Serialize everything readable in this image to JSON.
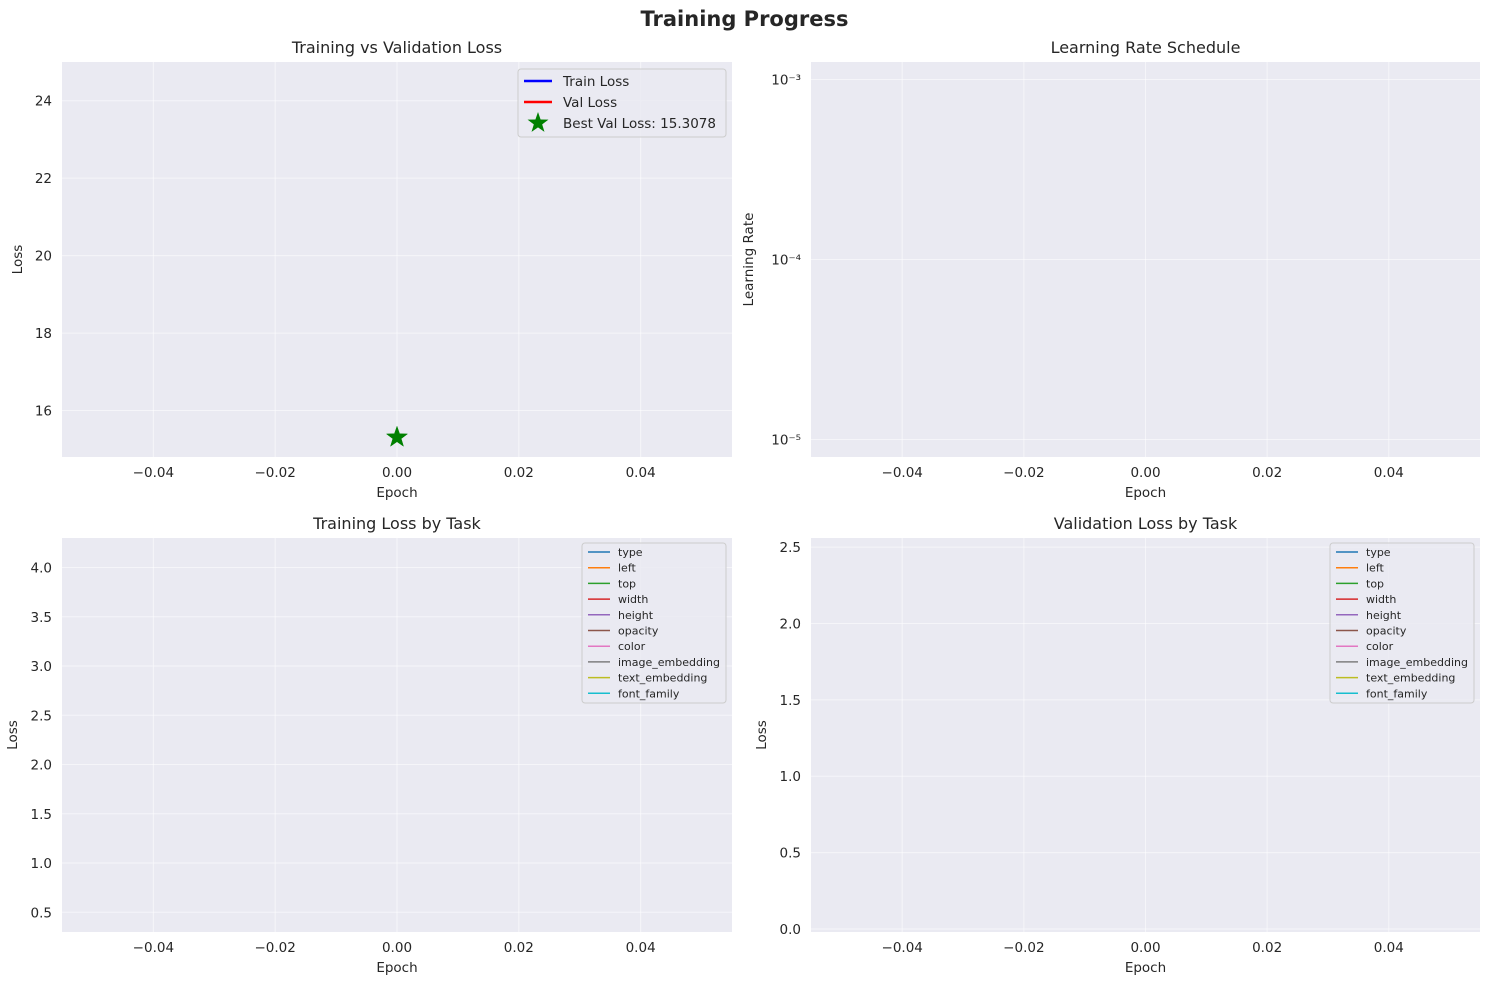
{
  "figure": {
    "suptitle": "Training Progress"
  },
  "chart_data": [
    {
      "type": "line",
      "title": "Training vs Validation Loss",
      "xlabel": "Epoch",
      "ylabel": "Loss",
      "xlim": [
        -0.055,
        0.055
      ],
      "ylim": [
        14.8,
        25.0
      ],
      "x_ticks": [
        -0.04,
        -0.02,
        0.0,
        0.02,
        0.04
      ],
      "x_tick_labels": [
        "−0.04",
        "−0.02",
        "0.00",
        "0.02",
        "0.04"
      ],
      "y_ticks": [
        16,
        18,
        20,
        22,
        24
      ],
      "y_tick_labels": [
        "16",
        "18",
        "20",
        "22",
        "24"
      ],
      "grid": true,
      "legend_position": "top-right",
      "series": [
        {
          "name": "Train Loss",
          "color": "#0000ff",
          "x": [],
          "y": []
        },
        {
          "name": "Val Loss",
          "color": "#ff0000",
          "x": [],
          "y": []
        }
      ],
      "markers": [
        {
          "name": "Best Val Loss: 15.3078",
          "color": "#008000",
          "marker": "star",
          "x": 0.0,
          "y": 15.3078
        }
      ]
    },
    {
      "type": "line",
      "title": "Learning Rate Schedule",
      "xlabel": "Epoch",
      "ylabel": "Learning Rate",
      "yscale": "log",
      "xlim": [
        -0.055,
        0.055
      ],
      "ylim": [
        8e-06,
        0.00125
      ],
      "x_ticks": [
        -0.04,
        -0.02,
        0.0,
        0.02,
        0.04
      ],
      "x_tick_labels": [
        "−0.04",
        "−0.02",
        "0.00",
        "0.02",
        "0.04"
      ],
      "y_ticks": [
        1e-05,
        0.0001,
        0.001
      ],
      "y_tick_labels": [
        "10⁻⁵",
        "10⁻⁴",
        "10⁻³"
      ],
      "grid": true,
      "series": []
    },
    {
      "type": "line",
      "title": "Training Loss by Task",
      "xlabel": "Epoch",
      "ylabel": "Loss",
      "xlim": [
        -0.055,
        0.055
      ],
      "ylim": [
        0.3,
        4.3
      ],
      "x_ticks": [
        -0.04,
        -0.02,
        0.0,
        0.02,
        0.04
      ],
      "x_tick_labels": [
        "−0.04",
        "−0.02",
        "0.00",
        "0.02",
        "0.04"
      ],
      "y_ticks": [
        0.5,
        1.0,
        1.5,
        2.0,
        2.5,
        3.0,
        3.5,
        4.0
      ],
      "y_tick_labels": [
        "0.5",
        "1.0",
        "1.5",
        "2.0",
        "2.5",
        "3.0",
        "3.5",
        "4.0"
      ],
      "grid": true,
      "legend_position": "top-right",
      "series": [
        {
          "name": "type",
          "color": "#1f77b4",
          "x": [],
          "y": []
        },
        {
          "name": "left",
          "color": "#ff7f0e",
          "x": [],
          "y": []
        },
        {
          "name": "top",
          "color": "#2ca02c",
          "x": [],
          "y": []
        },
        {
          "name": "width",
          "color": "#d62728",
          "x": [],
          "y": []
        },
        {
          "name": "height",
          "color": "#9467bd",
          "x": [],
          "y": []
        },
        {
          "name": "opacity",
          "color": "#8c564b",
          "x": [],
          "y": []
        },
        {
          "name": "color",
          "color": "#e377c2",
          "x": [],
          "y": []
        },
        {
          "name": "image_embedding",
          "color": "#7f7f7f",
          "x": [],
          "y": []
        },
        {
          "name": "text_embedding",
          "color": "#bcbd22",
          "x": [],
          "y": []
        },
        {
          "name": "font_family",
          "color": "#17becf",
          "x": [],
          "y": []
        }
      ]
    },
    {
      "type": "line",
      "title": "Validation Loss by Task",
      "xlabel": "Epoch",
      "ylabel": "Loss",
      "xlim": [
        -0.055,
        0.055
      ],
      "ylim": [
        -0.02,
        2.56
      ],
      "x_ticks": [
        -0.04,
        -0.02,
        0.0,
        0.02,
        0.04
      ],
      "x_tick_labels": [
        "−0.04",
        "−0.02",
        "0.00",
        "0.02",
        "0.04"
      ],
      "y_ticks": [
        0.0,
        0.5,
        1.0,
        1.5,
        2.0,
        2.5
      ],
      "y_tick_labels": [
        "0.0",
        "0.5",
        "1.0",
        "1.5",
        "2.0",
        "2.5"
      ],
      "grid": true,
      "legend_position": "top-right",
      "series": [
        {
          "name": "type",
          "color": "#1f77b4",
          "x": [],
          "y": []
        },
        {
          "name": "left",
          "color": "#ff7f0e",
          "x": [],
          "y": []
        },
        {
          "name": "top",
          "color": "#2ca02c",
          "x": [],
          "y": []
        },
        {
          "name": "width",
          "color": "#d62728",
          "x": [],
          "y": []
        },
        {
          "name": "height",
          "color": "#9467bd",
          "x": [],
          "y": []
        },
        {
          "name": "opacity",
          "color": "#8c564b",
          "x": [],
          "y": []
        },
        {
          "name": "color",
          "color": "#e377c2",
          "x": [],
          "y": []
        },
        {
          "name": "image_embedding",
          "color": "#7f7f7f",
          "x": [],
          "y": []
        },
        {
          "name": "text_embedding",
          "color": "#bcbd22",
          "x": [],
          "y": []
        },
        {
          "name": "font_family",
          "color": "#17becf",
          "x": [],
          "y": []
        }
      ]
    }
  ]
}
